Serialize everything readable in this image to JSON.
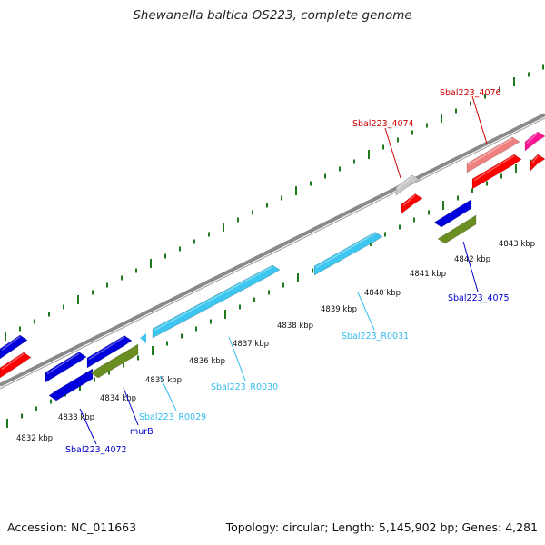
{
  "header": {
    "title": "Shewanella baltica OS223, complete genome"
  },
  "footer": {
    "accession": "Accession: NC_011663",
    "stats": "Topology: circular; Length: 5,145,902 bp; Genes: 4,281"
  },
  "colors": {
    "backbone": "#8a8a8a",
    "tick": "#1f7a1f",
    "red": "#ff0000",
    "blue": "#0000dd",
    "olive": "#6b8e23",
    "cyan": "#3cc6f0",
    "gray": "#c8c8c8",
    "salmon": "#f08080",
    "pink": "#ff1493",
    "label_red": "#cc0000",
    "label_blue": "#0000cc",
    "label_cyan": "#33bbee"
  },
  "scale": {
    "unit": "kbp",
    "ticks": [
      {
        "kbp": 4832,
        "label": "4832 kbp"
      },
      {
        "kbp": 4833,
        "label": "4833 kbp"
      },
      {
        "kbp": 4834,
        "label": "4834 kbp"
      },
      {
        "kbp": 4835,
        "label": "4835 kbp"
      },
      {
        "kbp": 4836,
        "label": "4836 kbp"
      },
      {
        "kbp": 4837,
        "label": "4837 kbp"
      },
      {
        "kbp": 4838,
        "label": "4838 kbp"
      },
      {
        "kbp": 4839,
        "label": "4839 kbp"
      },
      {
        "kbp": 4840,
        "label": "4840 kbp"
      },
      {
        "kbp": 4841,
        "label": "4841 kbp"
      },
      {
        "kbp": 4842,
        "label": "4842 kbp"
      },
      {
        "kbp": 4843,
        "label": "4843 kbp"
      }
    ]
  },
  "features": [
    {
      "name": "Sbal223_4072",
      "label": "Sbal223_4072",
      "color": "blue"
    },
    {
      "name": "murB",
      "label": "murB",
      "color": "blue"
    },
    {
      "name": "Sbal223_R0029",
      "label": "Sbal223_R0029",
      "color": "cyan"
    },
    {
      "name": "Sbal223_R0030",
      "label": "Sbal223_R0030",
      "color": "cyan"
    },
    {
      "name": "Sbal223_R0031",
      "label": "Sbal223_R0031",
      "color": "cyan"
    },
    {
      "name": "Sbal223_4074",
      "label": "Sbal223_4074",
      "color": "red"
    },
    {
      "name": "Sbal223_4075",
      "label": "Sbal223_4075",
      "color": "blue"
    },
    {
      "name": "Sbal223_4076",
      "label": "Sbal223_4076",
      "color": "red"
    }
  ]
}
